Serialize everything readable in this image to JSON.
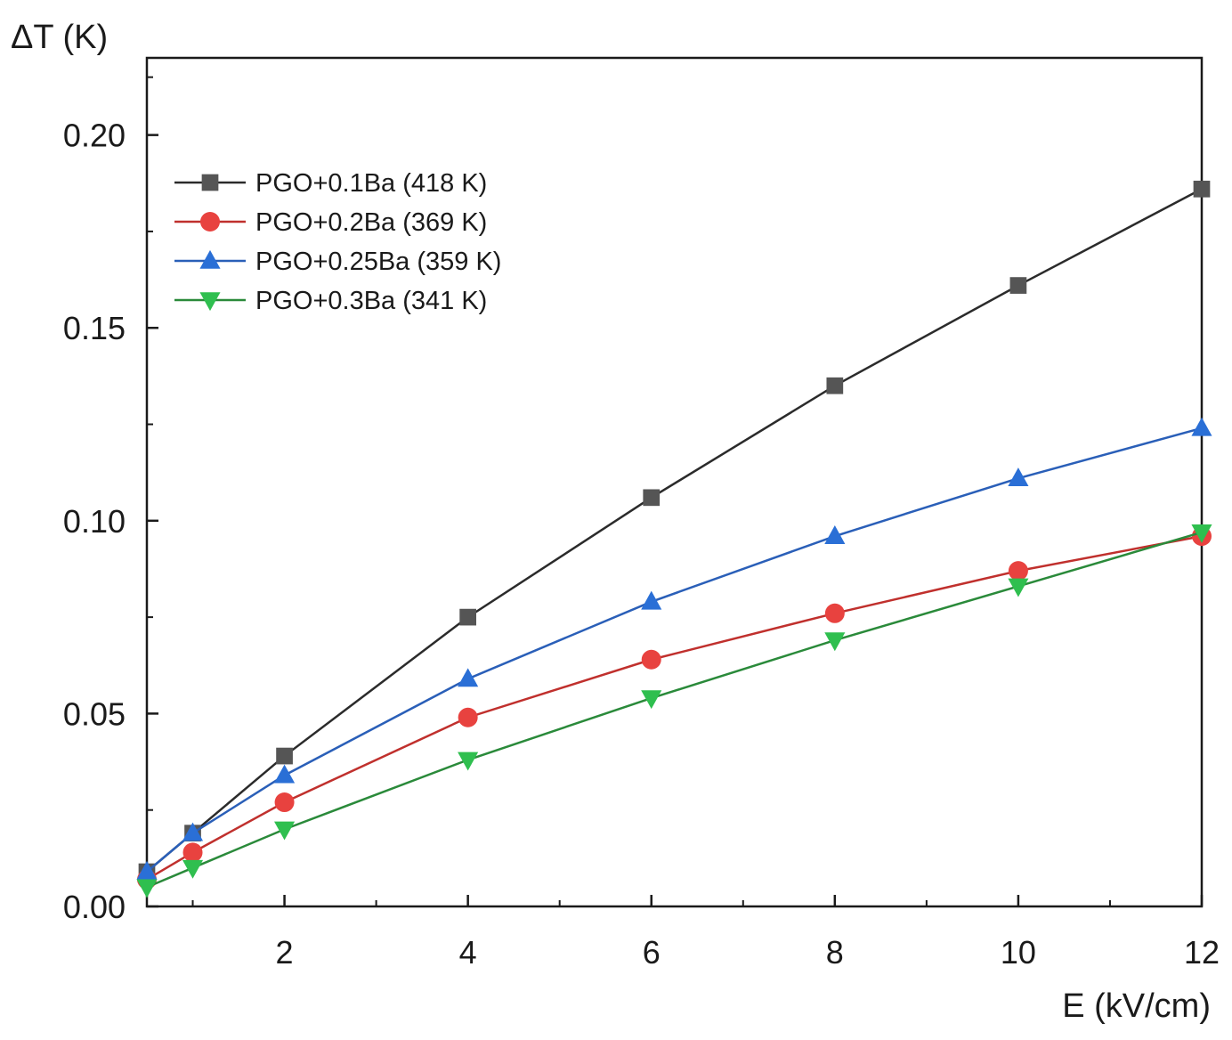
{
  "chart_data": {
    "type": "line",
    "title": "",
    "xlabel": "E (kV/cm)",
    "ylabel": "ΔT (K)",
    "xlim": [
      0.5,
      12
    ],
    "ylim": [
      0,
      0.22
    ],
    "x_ticks": [
      2,
      4,
      6,
      8,
      10,
      12
    ],
    "x_tick_labels": [
      "2",
      "4",
      "6",
      "8",
      "10",
      "12"
    ],
    "y_ticks": [
      0,
      0.05,
      0.1,
      0.15,
      0.2
    ],
    "y_tick_labels": [
      "0.00",
      "0.05",
      "0.10",
      "0.15",
      "0.20"
    ],
    "grid": false,
    "legend_position": "top-left",
    "series": [
      {
        "name": "PGO+0.1Ba (418 K)",
        "color": "#555555",
        "line_color": "#2b2b2b",
        "marker": "square",
        "x": [
          0.5,
          1,
          2,
          4,
          6,
          8,
          10,
          12
        ],
        "y": [
          0.009,
          0.019,
          0.039,
          0.075,
          0.106,
          0.135,
          0.161,
          0.186
        ]
      },
      {
        "name": "PGO+0.2Ba (369 K)",
        "color": "#e8423f",
        "line_color": "#c0302d",
        "marker": "circle",
        "x": [
          0.5,
          1,
          2,
          4,
          6,
          8,
          10,
          12
        ],
        "y": [
          0.007,
          0.014,
          0.027,
          0.049,
          0.064,
          0.076,
          0.087,
          0.096
        ]
      },
      {
        "name": "PGO+0.25Ba (359 K)",
        "color": "#2a6fd6",
        "line_color": "#2a5fb8",
        "marker": "triangle-up",
        "x": [
          0.5,
          1,
          2,
          4,
          6,
          8,
          10,
          12
        ],
        "y": [
          0.009,
          0.019,
          0.034,
          0.059,
          0.079,
          0.096,
          0.111,
          0.124
        ]
      },
      {
        "name": "PGO+0.3Ba (341 K)",
        "color": "#2fbf4f",
        "line_color": "#2a8a3a",
        "marker": "triangle-down",
        "x": [
          0.5,
          1,
          2,
          4,
          6,
          8,
          10,
          12
        ],
        "y": [
          0.005,
          0.01,
          0.02,
          0.038,
          0.054,
          0.069,
          0.083,
          0.097
        ]
      }
    ]
  }
}
